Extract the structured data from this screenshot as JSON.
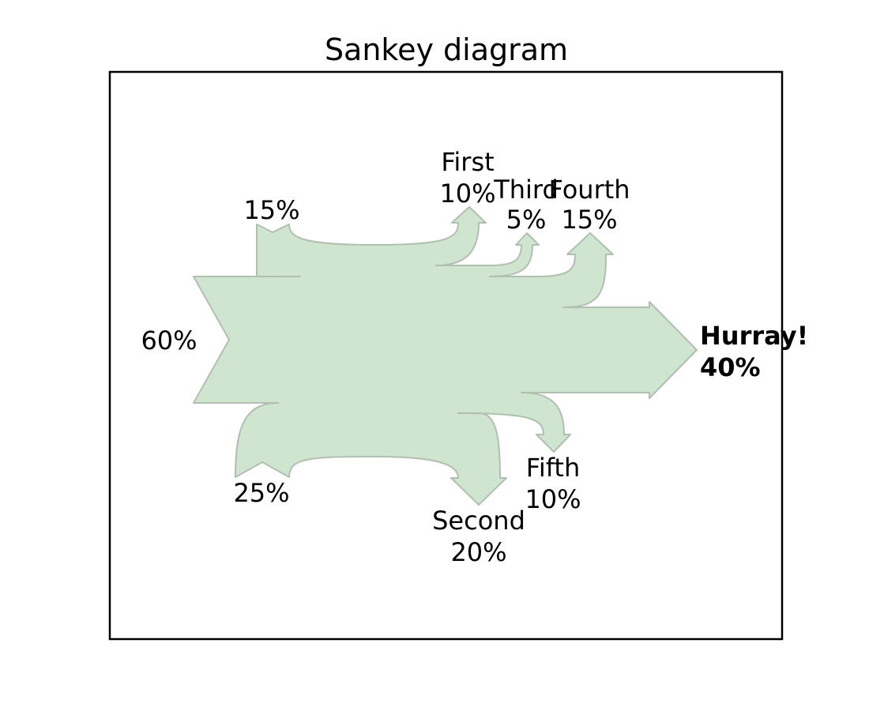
{
  "title": "Sankey diagram",
  "colors": {
    "flow_fill": "#cfe5cf",
    "flow_stroke": "#b0bfb0",
    "frame": "#000000",
    "text": "#000000",
    "highlight_text": "#ff0000"
  },
  "chart_data": {
    "type": "sankey",
    "flows": [
      {
        "id": "input-60",
        "label": "",
        "value_label": "60%",
        "value": 60,
        "direction": "in",
        "style": "normal"
      },
      {
        "id": "input-15",
        "label": "",
        "value_label": "15%",
        "value": 15,
        "direction": "in",
        "style": "normal"
      },
      {
        "id": "input-25",
        "label": "",
        "value_label": "25%",
        "value": 25,
        "direction": "in",
        "style": "normal"
      },
      {
        "id": "first",
        "label": "First",
        "value_label": "10%",
        "value": 10,
        "direction": "out",
        "style": "normal"
      },
      {
        "id": "third",
        "label": "Third",
        "value_label": "5%",
        "value": 5,
        "direction": "out",
        "style": "normal"
      },
      {
        "id": "fourth",
        "label": "Fourth",
        "value_label": "15%",
        "value": 15,
        "direction": "out",
        "style": "normal"
      },
      {
        "id": "hurray",
        "label": "Hurray!",
        "value_label": "40%",
        "value": 40,
        "direction": "out",
        "style": "bold"
      },
      {
        "id": "fifth",
        "label": "Fifth",
        "value_label": "10%",
        "value": 10,
        "direction": "out",
        "style": "normal"
      },
      {
        "id": "second",
        "label": "Second",
        "value_label": "20%",
        "value": 20,
        "direction": "out",
        "style": "red"
      }
    ]
  }
}
